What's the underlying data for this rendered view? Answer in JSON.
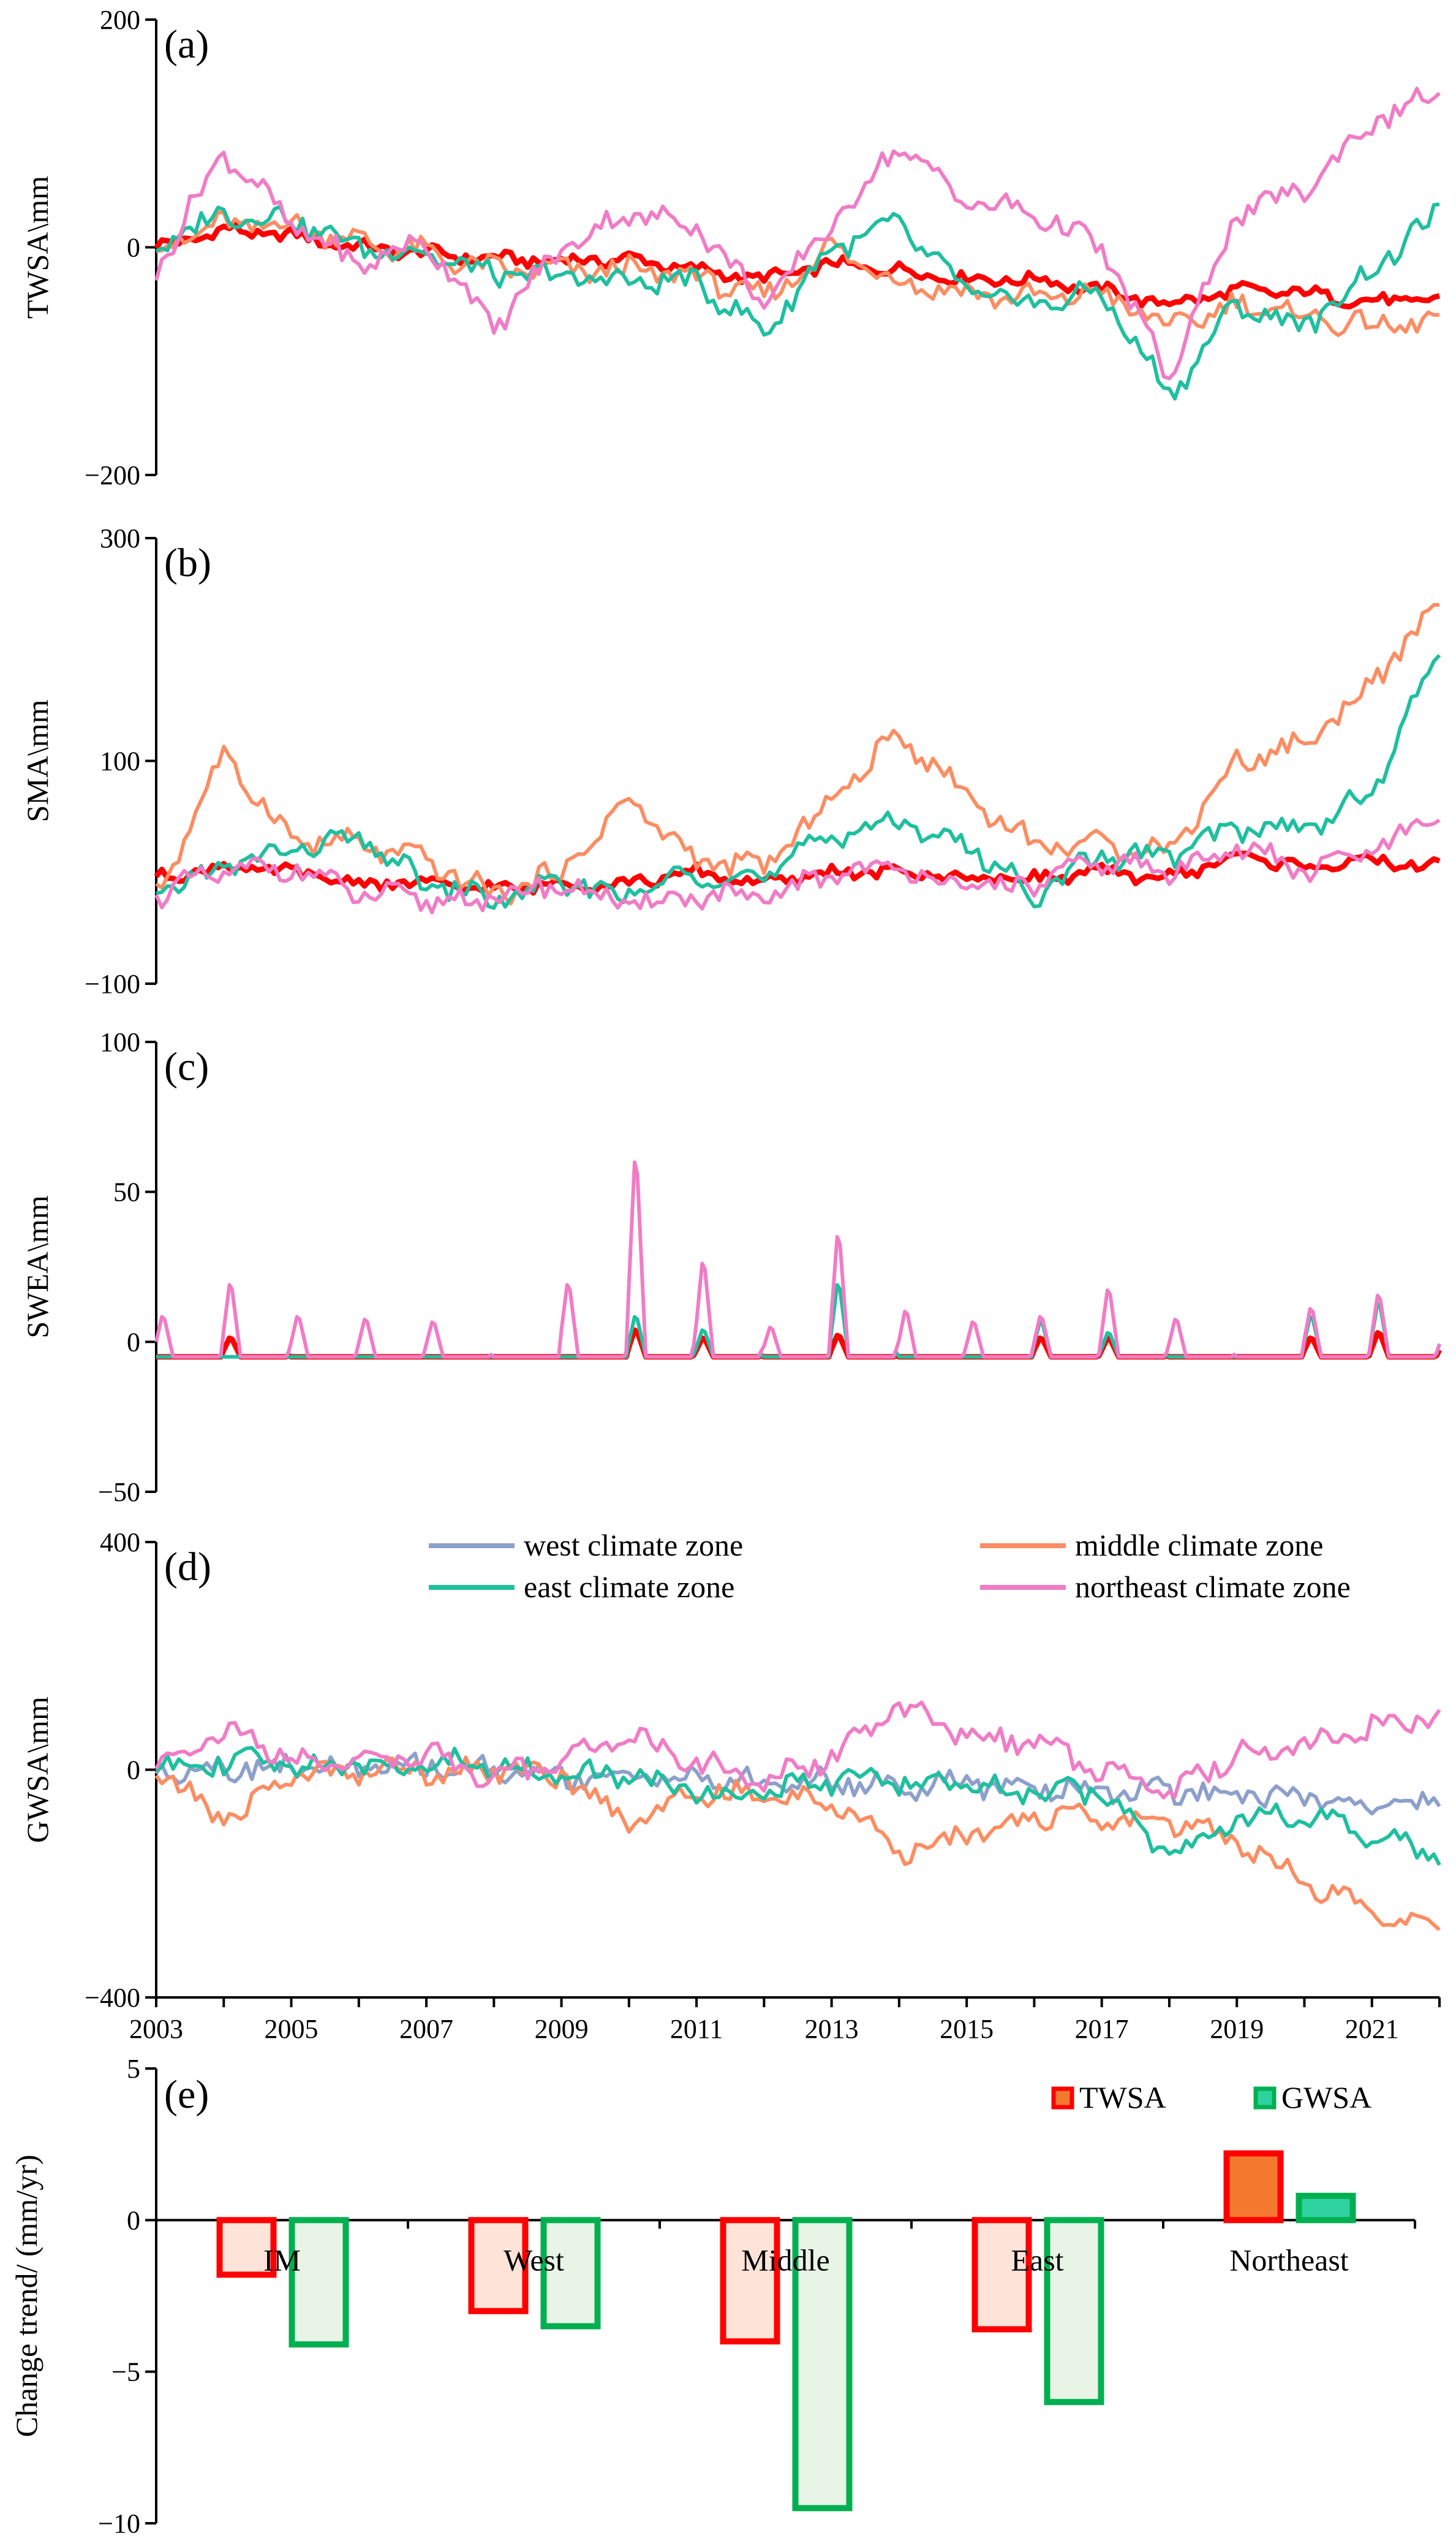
{
  "x_ticks": [
    "2003",
    "2005",
    "2007",
    "2009",
    "2011",
    "2013",
    "2015",
    "2017",
    "2019",
    "2021"
  ],
  "legend": {
    "west": "west climate zone",
    "middle": "middle climate zone",
    "east": "east climate zone",
    "northeast": "northeast climate zone",
    "twsa": "TWSA",
    "gwsa": "GWSA"
  },
  "colors": {
    "im": "#ff0000",
    "west": "#8da0cb",
    "middle": "#fc8d62",
    "east": "#1fbf9f",
    "northeast": "#f07cc6",
    "twsa_bar_fill": "#fde3d8",
    "twsa_bar_stroke": "#ff0000",
    "gwsa_bar_fill": "#e8f4e6",
    "gwsa_bar_stroke": "#00b050",
    "ne_twsa_fill": "#f4792e",
    "ne_gwsa_fill": "#2ed2a0"
  },
  "chart_data": [
    {
      "panel": "(a)",
      "type": "line",
      "ylabel": "TWSA\\mm",
      "ylim": [
        -200,
        200
      ],
      "yticks": [
        "200",
        "0",
        "−200"
      ],
      "x_range": [
        2003,
        2022
      ],
      "series": [
        {
          "key": "im",
          "x": [
            2003,
            2004,
            2005,
            2006,
            2007,
            2008,
            2009,
            2010,
            2011,
            2012,
            2013,
            2014,
            2015,
            2016,
            2017,
            2018,
            2019,
            2020,
            2021,
            2022
          ],
          "values": [
            0,
            15,
            10,
            0,
            -5,
            -10,
            -12,
            -10,
            -20,
            -28,
            -15,
            -20,
            -28,
            -28,
            -38,
            -50,
            -38,
            -40,
            -48,
            -45
          ]
        },
        {
          "key": "middle",
          "x": [
            2003,
            2004,
            2005,
            2006,
            2007,
            2008,
            2009,
            2010,
            2011,
            2012,
            2013,
            2014,
            2015,
            2016,
            2017,
            2018,
            2019,
            2020,
            2021,
            2022
          ],
          "values": [
            0,
            20,
            20,
            5,
            -5,
            -20,
            -20,
            -20,
            -25,
            -45,
            0,
            -30,
            -40,
            -45,
            -40,
            -70,
            -50,
            -60,
            -70,
            -65
          ]
        },
        {
          "key": "east",
          "x": [
            2003,
            2004,
            2005,
            2006,
            2007,
            2008,
            2009,
            2010,
            2011,
            2012,
            2013,
            2014,
            2015,
            2016,
            2017,
            2018,
            2019,
            2020,
            2021,
            2022
          ],
          "values": [
            0,
            30,
            25,
            0,
            -5,
            -25,
            -25,
            -30,
            -30,
            -75,
            0,
            20,
            -40,
            -50,
            -40,
            -130,
            -50,
            -70,
            -20,
            30
          ]
        },
        {
          "key": "northeast",
          "x": [
            2003,
            2004,
            2005,
            2006,
            2007,
            2008,
            2009,
            2010,
            2011,
            2012,
            2013,
            2014,
            2015,
            2016,
            2017,
            2018,
            2019,
            2020,
            2021,
            2022
          ],
          "values": [
            -20,
            85,
            20,
            -15,
            5,
            -70,
            0,
            30,
            20,
            -50,
            20,
            90,
            40,
            30,
            0,
            -115,
            30,
            50,
            110,
            135
          ]
        }
      ]
    },
    {
      "panel": "(b)",
      "type": "line",
      "ylabel": "SMA\\mm",
      "ylim": [
        -100,
        300
      ],
      "yticks": [
        "300",
        "100",
        "−100"
      ],
      "x_range": [
        2003,
        2022
      ],
      "series": [
        {
          "key": "im",
          "x": [
            2003,
            2004,
            2005,
            2006,
            2007,
            2008,
            2009,
            2010,
            2011,
            2012,
            2013,
            2014,
            2015,
            2016,
            2017,
            2018,
            2019,
            2020,
            2021,
            2022
          ],
          "values": [
            -5,
            5,
            0,
            -10,
            -10,
            -15,
            -10,
            -10,
            0,
            -10,
            0,
            0,
            -5,
            -5,
            0,
            -5,
            15,
            5,
            10,
            5
          ]
        },
        {
          "key": "middle",
          "x": [
            2003,
            2004,
            2005,
            2006,
            2007,
            2008,
            2009,
            2010,
            2011,
            2012,
            2013,
            2014,
            2015,
            2016,
            2017,
            2018,
            2019,
            2020,
            2021,
            2022
          ],
          "values": [
            -20,
            105,
            30,
            25,
            10,
            -20,
            0,
            65,
            10,
            5,
            65,
            125,
            70,
            25,
            25,
            20,
            100,
            115,
            170,
            240
          ]
        },
        {
          "key": "east",
          "x": [
            2003,
            2004,
            2005,
            2006,
            2007,
            2008,
            2009,
            2010,
            2011,
            2012,
            2013,
            2014,
            2015,
            2016,
            2017,
            2018,
            2019,
            2020,
            2021,
            2022
          ],
          "values": [
            -20,
            5,
            20,
            30,
            -10,
            -25,
            -10,
            -20,
            0,
            -5,
            35,
            45,
            25,
            -20,
            15,
            15,
            40,
            40,
            70,
            200
          ]
        },
        {
          "key": "northeast",
          "x": [
            2003,
            2004,
            2005,
            2006,
            2007,
            2008,
            2009,
            2010,
            2011,
            2012,
            2013,
            2014,
            2015,
            2016,
            2017,
            2018,
            2019,
            2020,
            2021,
            2022
          ],
          "values": [
            -20,
            0,
            5,
            -20,
            -25,
            -25,
            -10,
            -30,
            -20,
            -25,
            0,
            5,
            -15,
            -10,
            10,
            0,
            25,
            0,
            20,
            45
          ]
        }
      ]
    },
    {
      "panel": "(c)",
      "type": "line",
      "ylabel": "SWEA\\mm",
      "ylim": [
        -50,
        100
      ],
      "yticks": [
        "100",
        "50",
        "0",
        "−50"
      ],
      "x_range": [
        2003,
        2022
      ],
      "series": [
        {
          "key": "im",
          "x": [
            2003,
            2004,
            2005,
            2006,
            2007,
            2008,
            2009,
            2010,
            2011,
            2012,
            2013,
            2014,
            2015,
            2016,
            2017,
            2018,
            2019,
            2020,
            2021,
            2022
          ],
          "values": [
            0,
            2,
            0,
            0,
            0,
            0,
            0,
            5,
            2,
            0,
            3,
            0,
            0,
            2,
            2,
            0,
            0,
            2,
            4,
            2
          ]
        },
        {
          "key": "east",
          "x": [
            2003,
            2004,
            2005,
            2006,
            2007,
            2008,
            2009,
            2010,
            2011,
            2012,
            2013,
            2014,
            2015,
            2016,
            2017,
            2018,
            2019,
            2020,
            2021,
            2022
          ],
          "values": [
            0,
            0,
            0,
            0,
            0,
            0,
            0,
            10,
            5,
            0,
            22,
            0,
            0,
            8,
            4,
            0,
            0,
            10,
            15,
            8
          ]
        },
        {
          "key": "northeast",
          "x": [
            2003,
            2004,
            2005,
            2006,
            2007,
            2008,
            2009,
            2010,
            2011,
            2012,
            2013,
            2014,
            2015,
            2016,
            2017,
            2018,
            2019,
            2020,
            2021,
            2022
          ],
          "values": [
            10,
            22,
            10,
            9,
            8,
            0,
            22,
            68,
            30,
            6,
            40,
            12,
            8,
            10,
            20,
            9,
            0,
            13,
            18,
            8
          ]
        }
      ]
    },
    {
      "panel": "(d)",
      "type": "line",
      "ylabel": "GWSA\\mm",
      "ylim": [
        -400,
        400
      ],
      "yticks": [
        "400",
        "0",
        "−400"
      ],
      "x_range": [
        2003,
        2022
      ],
      "series": [
        {
          "key": "west",
          "x": [
            2003,
            2004,
            2005,
            2006,
            2007,
            2008,
            2009,
            2010,
            2011,
            2012,
            2013,
            2014,
            2015,
            2016,
            2017,
            2018,
            2019,
            2020,
            2021,
            2022
          ],
          "values": [
            0,
            5,
            5,
            0,
            5,
            0,
            -10,
            -10,
            -15,
            -25,
            -20,
            -30,
            -25,
            -30,
            -35,
            -40,
            -40,
            -50,
            -60,
            -60
          ]
        },
        {
          "key": "middle",
          "x": [
            2003,
            2004,
            2005,
            2006,
            2007,
            2008,
            2009,
            2010,
            2011,
            2012,
            2013,
            2014,
            2015,
            2016,
            2017,
            2018,
            2019,
            2020,
            2021,
            2022
          ],
          "values": [
            0,
            -90,
            -10,
            0,
            0,
            0,
            -10,
            -90,
            -40,
            -50,
            -50,
            -150,
            -110,
            -80,
            -90,
            -90,
            -120,
            -200,
            -250,
            -280
          ]
        },
        {
          "key": "east",
          "x": [
            2003,
            2004,
            2005,
            2006,
            2007,
            2008,
            2009,
            2010,
            2011,
            2012,
            2013,
            2014,
            2015,
            2016,
            2017,
            2018,
            2019,
            2020,
            2021,
            2022
          ],
          "values": [
            10,
            15,
            10,
            5,
            10,
            10,
            -10,
            -10,
            -40,
            -40,
            -20,
            -20,
            -30,
            -40,
            -40,
            -150,
            -80,
            -80,
            -120,
            -150
          ]
        },
        {
          "key": "northeast",
          "x": [
            2003,
            2004,
            2005,
            2006,
            2007,
            2008,
            2009,
            2010,
            2011,
            2012,
            2013,
            2014,
            2015,
            2016,
            2017,
            2018,
            2019,
            2020,
            2021,
            2022
          ],
          "values": [
            10,
            70,
            20,
            10,
            30,
            -20,
            20,
            60,
            10,
            -20,
            20,
            110,
            60,
            50,
            0,
            -40,
            30,
            40,
            80,
            90
          ]
        }
      ]
    },
    {
      "panel": "(e)",
      "type": "bar",
      "ylabel": "Change trend/ (mm/yr)",
      "ylim": [
        -10,
        5
      ],
      "yticks": [
        "5",
        "0",
        "−5",
        "−10"
      ],
      "categories": [
        "IM",
        "West",
        "Middle",
        "East",
        "Northeast"
      ],
      "series": [
        {
          "name": "TWSA",
          "values": [
            -1.8,
            -3.0,
            -4.0,
            -3.6,
            2.2
          ]
        },
        {
          "name": "GWSA",
          "values": [
            -4.1,
            -3.5,
            -9.5,
            -6.0,
            0.8
          ]
        }
      ]
    }
  ]
}
